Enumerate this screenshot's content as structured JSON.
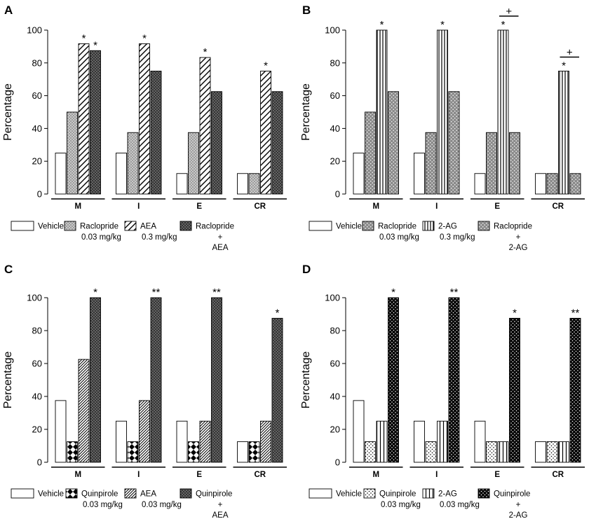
{
  "figure": {
    "panels": [
      {
        "label": "A",
        "ylabel": "Percentage",
        "yticks": [
          "0",
          "20",
          "40",
          "60",
          "80",
          "100"
        ],
        "legend": [
          {
            "label": "Vehicle",
            "sub": "",
            "sub2": ""
          },
          {
            "label": "Raclopride",
            "sub": "0.03 mg/kg",
            "sub2": ""
          },
          {
            "label": "AEA",
            "sub": "0.3 mg/kg",
            "sub2": ""
          },
          {
            "label": "Raclopride",
            "sub": "+",
            "sub2": "AEA"
          }
        ]
      },
      {
        "label": "B",
        "ylabel": "Percentage",
        "yticks": [
          "0",
          "20",
          "40",
          "60",
          "80",
          "100"
        ],
        "legend": [
          {
            "label": "Vehicle",
            "sub": "",
            "sub2": ""
          },
          {
            "label": "Raclopride",
            "sub": "0.03 mg/kg",
            "sub2": ""
          },
          {
            "label": "2-AG",
            "sub": "0.3 mg/kg",
            "sub2": ""
          },
          {
            "label": "Raclopride",
            "sub": "+",
            "sub2": "2-AG"
          }
        ]
      },
      {
        "label": "C",
        "ylabel": "Percentage",
        "yticks": [
          "0",
          "20",
          "40",
          "60",
          "80",
          "100"
        ],
        "legend": [
          {
            "label": "Vehicle",
            "sub": "",
            "sub2": ""
          },
          {
            "label": "Quinpirole",
            "sub": "0.03 mg/kg",
            "sub2": ""
          },
          {
            "label": "AEA",
            "sub": "0.03 mg/kg",
            "sub2": ""
          },
          {
            "label": "Quinpirole",
            "sub": "+",
            "sub2": "AEA"
          }
        ]
      },
      {
        "label": "D",
        "ylabel": "Percentage",
        "yticks": [
          "0",
          "20",
          "40",
          "60",
          "80",
          "100"
        ],
        "legend": [
          {
            "label": "Vehicle",
            "sub": "",
            "sub2": ""
          },
          {
            "label": "Quinpirole",
            "sub": "0.03 mg/kg",
            "sub2": ""
          },
          {
            "label": "2-AG",
            "sub": "0.03 mg/kg",
            "sub2": ""
          },
          {
            "label": "Quinpirole",
            "sub": "+",
            "sub2": "2-AG"
          }
        ]
      }
    ]
  },
  "chart_data": [
    {
      "type": "bar",
      "title": "A",
      "ylabel": "Percentage",
      "xlabel": "",
      "ylim": [
        0,
        100
      ],
      "categories": [
        "M",
        "I",
        "E",
        "CR"
      ],
      "series": [
        {
          "name": "Vehicle",
          "values": [
            25,
            25,
            12.5,
            12.5
          ]
        },
        {
          "name": "Raclopride 0.03 mg/kg",
          "values": [
            50,
            37.5,
            37.5,
            12.5
          ]
        },
        {
          "name": "AEA 0.3 mg/kg",
          "values": [
            91.7,
            91.7,
            83.3,
            75
          ]
        },
        {
          "name": "Raclopride + AEA",
          "values": [
            87.5,
            75,
            62.5,
            62.5
          ]
        }
      ],
      "annotations": [
        {
          "text": "*",
          "category": "M",
          "series": "AEA 0.3 mg/kg"
        },
        {
          "text": "*",
          "category": "M",
          "series": "Raclopride + AEA"
        },
        {
          "text": "*",
          "category": "I",
          "series": "AEA 0.3 mg/kg"
        },
        {
          "text": "*",
          "category": "E",
          "series": "AEA 0.3 mg/kg"
        },
        {
          "text": "*",
          "category": "CR",
          "series": "AEA 0.3 mg/kg"
        }
      ]
    },
    {
      "type": "bar",
      "title": "B",
      "ylabel": "Percentage",
      "xlabel": "",
      "ylim": [
        0,
        100
      ],
      "categories": [
        "M",
        "I",
        "E",
        "CR"
      ],
      "series": [
        {
          "name": "Vehicle",
          "values": [
            25,
            25,
            12.5,
            12.5
          ]
        },
        {
          "name": "Raclopride 0.03 mg/kg",
          "values": [
            50,
            37.5,
            37.5,
            12.5
          ]
        },
        {
          "name": "2-AG 0.3 mg/kg",
          "values": [
            100,
            100,
            100,
            75
          ]
        },
        {
          "name": "Raclopride + 2-AG",
          "values": [
            62.5,
            62.5,
            37.5,
            12.5
          ]
        }
      ],
      "annotations": [
        {
          "text": "*",
          "category": "M",
          "series": "2-AG 0.3 mg/kg"
        },
        {
          "text": "*",
          "category": "I",
          "series": "2-AG 0.3 mg/kg"
        },
        {
          "text": "*",
          "category": "E",
          "series": "2-AG 0.3 mg/kg"
        },
        {
          "text": "*",
          "category": "CR",
          "series": "2-AG 0.3 mg/kg"
        },
        {
          "text": "+",
          "category": "E",
          "between": [
            "2-AG 0.3 mg/kg",
            "Raclopride + 2-AG"
          ]
        },
        {
          "text": "+",
          "category": "CR",
          "between": [
            "2-AG 0.3 mg/kg",
            "Raclopride + 2-AG"
          ]
        }
      ]
    },
    {
      "type": "bar",
      "title": "C",
      "ylabel": "Percentage",
      "xlabel": "",
      "ylim": [
        0,
        100
      ],
      "categories": [
        "M",
        "I",
        "E",
        "CR"
      ],
      "series": [
        {
          "name": "Vehicle",
          "values": [
            37.5,
            25,
            25,
            12.5
          ]
        },
        {
          "name": "Quinpirole 0.03 mg/kg",
          "values": [
            12.5,
            12.5,
            12.5,
            12.5
          ]
        },
        {
          "name": "AEA 0.03 mg/kg",
          "values": [
            62.5,
            37.5,
            25,
            25
          ]
        },
        {
          "name": "Quinpirole + AEA",
          "values": [
            100,
            100,
            100,
            87.5
          ]
        }
      ],
      "annotations": [
        {
          "text": "*",
          "category": "M",
          "series": "Quinpirole + AEA"
        },
        {
          "text": "**",
          "category": "I",
          "series": "Quinpirole + AEA"
        },
        {
          "text": "**",
          "category": "E",
          "series": "Quinpirole + AEA"
        },
        {
          "text": "*",
          "category": "CR",
          "series": "Quinpirole + AEA"
        }
      ]
    },
    {
      "type": "bar",
      "title": "D",
      "ylabel": "Percentage",
      "xlabel": "",
      "ylim": [
        0,
        100
      ],
      "categories": [
        "M",
        "I",
        "E",
        "CR"
      ],
      "series": [
        {
          "name": "Vehicle",
          "values": [
            37.5,
            25,
            25,
            12.5
          ]
        },
        {
          "name": "Quinpirole 0.03 mg/kg",
          "values": [
            12.5,
            12.5,
            12.5,
            12.5
          ]
        },
        {
          "name": "2-AG 0.03 mg/kg",
          "values": [
            25,
            25,
            12.5,
            12.5
          ]
        },
        {
          "name": "Quinpirole + 2-AG",
          "values": [
            100,
            100,
            87.5,
            87.5
          ]
        }
      ],
      "annotations": [
        {
          "text": "*",
          "category": "M",
          "series": "Quinpirole + 2-AG"
        },
        {
          "text": "**",
          "category": "I",
          "series": "Quinpirole + 2-AG"
        },
        {
          "text": "*",
          "category": "E",
          "series": "Quinpirole + 2-AG"
        },
        {
          "text": "**",
          "category": "CR",
          "series": "Quinpirole + 2-AG"
        }
      ]
    }
  ],
  "styles": {
    "fills": [
      [
        "#ffffff",
        "pat-dots-grey",
        "pat-diag",
        "pat-dark"
      ],
      [
        "#ffffff",
        "pat-grey-dots",
        "pat-vert",
        "pat-grey-dots"
      ],
      [
        "#ffffff",
        "pat-diamond",
        "pat-diag-fine",
        "pat-dark"
      ],
      [
        "#ffffff",
        "pat-sparse-dots",
        "pat-vert-wide",
        "pat-black-dots"
      ]
    ]
  }
}
